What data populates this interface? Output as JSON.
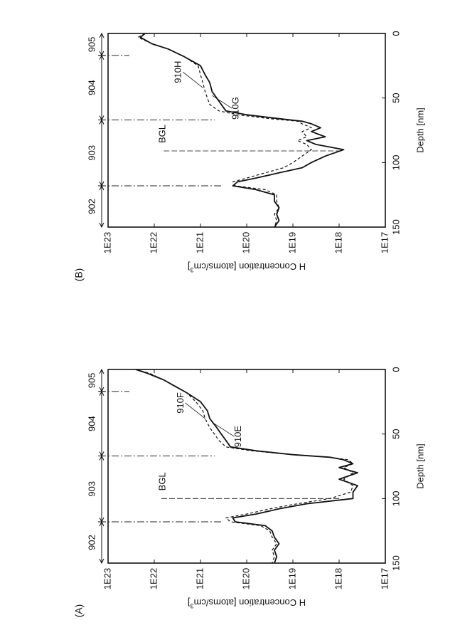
{
  "chart_data": [
    {
      "panel_label": "(A)",
      "type": "line",
      "xlabel": "Depth [nm]",
      "ylabel_base": "H Concentration [atoms/cm",
      "ylabel_sup": "3",
      "ylabel_end": "]",
      "xlim": [
        0,
        150
      ],
      "ylim": [
        17,
        23
      ],
      "y_scale": "log",
      "x_ticks": [
        "0",
        "50",
        "100",
        "150"
      ],
      "y_ticks": [
        "1E17",
        "1E18",
        "1E19",
        "1E20",
        "1E21",
        "1E22",
        "1E23"
      ],
      "regions": [
        "905",
        "904",
        "903",
        "902"
      ],
      "region_boundaries": [
        17,
        67,
        118
      ],
      "series": [
        {
          "name": "910E",
          "style": "solid",
          "x": [
            0,
            3,
            8,
            12,
            18,
            25,
            32,
            38,
            45,
            50,
            55,
            60,
            63,
            66,
            68,
            70,
            73,
            76,
            80,
            85,
            90,
            95,
            100,
            104,
            108,
            112,
            115,
            118,
            121,
            125,
            130,
            135,
            140,
            145,
            150
          ],
          "y": [
            22.4,
            22.15,
            21.8,
            21.6,
            21.3,
            21.0,
            20.85,
            20.8,
            20.65,
            20.55,
            20.45,
            20.35,
            19.8,
            19.0,
            18.2,
            17.9,
            17.7,
            18.0,
            17.6,
            18.0,
            17.6,
            17.7,
            17.7,
            18.7,
            19.3,
            19.8,
            20.3,
            20.25,
            19.6,
            19.45,
            19.4,
            19.3,
            19.4,
            19.35,
            19.4
          ]
        },
        {
          "name": "910F",
          "style": "dashed",
          "x": [
            0,
            3,
            8,
            12,
            18,
            25,
            32,
            38,
            45,
            50,
            55,
            60,
            63,
            66,
            68,
            70,
            73,
            76,
            80,
            85,
            90,
            95,
            100,
            104,
            108,
            112,
            115,
            118,
            121,
            125,
            130,
            135,
            140,
            145,
            150
          ],
          "y": [
            22.4,
            22.1,
            21.8,
            21.6,
            21.3,
            21.1,
            20.95,
            20.9,
            20.8,
            20.7,
            20.6,
            20.45,
            19.9,
            19.0,
            18.2,
            17.8,
            17.7,
            17.9,
            17.7,
            17.9,
            17.7,
            17.75,
            18.2,
            18.9,
            19.5,
            20.0,
            20.45,
            20.35,
            19.7,
            19.5,
            19.45,
            19.35,
            19.45,
            19.4,
            19.45
          ]
        }
      ],
      "annotations": [
        {
          "text": "910F",
          "x": 38,
          "y": 20.9
        },
        {
          "text": "910E",
          "x": 42,
          "y": 20.7
        },
        {
          "text": "BGL",
          "x": 100,
          "y": 18.0
        }
      ]
    },
    {
      "panel_label": "(B)",
      "type": "line",
      "xlabel": "Depth [nm]",
      "ylabel_base": "H Concentration [atoms/cm",
      "ylabel_sup": "3",
      "ylabel_end": "]",
      "xlim": [
        0,
        150
      ],
      "ylim": [
        17,
        23
      ],
      "y_scale": "log",
      "x_ticks": [
        "0",
        "50",
        "100",
        "150"
      ],
      "y_ticks": [
        "1E17",
        "1E18",
        "1E19",
        "1E20",
        "1E21",
        "1E22",
        "1E23"
      ],
      "regions": [
        "905",
        "904",
        "903",
        "902"
      ],
      "region_boundaries": [
        17,
        67,
        118
      ],
      "series": [
        {
          "name": "910G",
          "style": "solid",
          "x": [
            0,
            3,
            8,
            12,
            18,
            25,
            32,
            38,
            45,
            50,
            55,
            60,
            63,
            66,
            68,
            70,
            73,
            76,
            80,
            83,
            86,
            90,
            95,
            100,
            104,
            108,
            112,
            115,
            118,
            121,
            125,
            130,
            135,
            140,
            145,
            150
          ],
          "y": [
            22.2,
            22.3,
            22.05,
            21.7,
            21.35,
            21.0,
            20.9,
            20.8,
            20.75,
            20.65,
            20.55,
            20.45,
            20.0,
            19.3,
            18.8,
            18.6,
            18.4,
            18.6,
            18.3,
            18.7,
            18.5,
            17.9,
            18.3,
            18.6,
            18.8,
            19.3,
            19.8,
            20.2,
            20.3,
            19.8,
            19.4,
            19.4,
            19.3,
            19.35,
            19.3,
            19.4
          ]
        },
        {
          "name": "910H",
          "style": "dashed",
          "x": [
            0,
            3,
            8,
            12,
            18,
            25,
            32,
            38,
            45,
            50,
            55,
            60,
            63,
            66,
            68,
            70,
            73,
            76,
            80,
            83,
            86,
            90,
            95,
            100,
            104,
            108,
            112,
            115,
            118,
            121,
            125,
            130,
            135,
            140,
            145,
            150
          ],
          "y": [
            22.2,
            22.35,
            22.05,
            21.7,
            21.35,
            21.05,
            21.0,
            20.95,
            20.9,
            20.85,
            20.8,
            20.6,
            20.2,
            19.5,
            18.9,
            18.8,
            18.6,
            18.8,
            18.7,
            18.9,
            18.7,
            18.6,
            18.8,
            19.0,
            19.2,
            19.6,
            20.0,
            20.3,
            20.25,
            19.6,
            19.35,
            19.35,
            19.3,
            19.4,
            19.35,
            19.4
          ]
        }
      ],
      "annotations": [
        {
          "text": "910H",
          "x": 42,
          "y": 20.95
        },
        {
          "text": "910G",
          "x": 48,
          "y": 20.75
        },
        {
          "text": "BGL",
          "x": 91,
          "y": 17.95
        }
      ]
    }
  ]
}
